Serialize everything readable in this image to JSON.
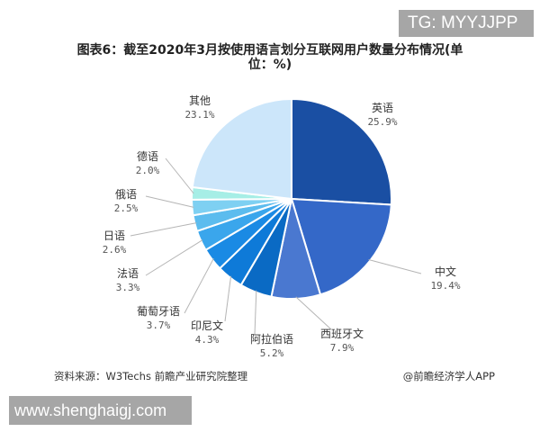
{
  "watermark_badge": "TG: MYYJJPP",
  "title_line1": "图表6：截至2020年3月按使用语言划分互联网用户数量分布情况(单",
  "title_line2": "位：%)",
  "source": "资料来源：W3Techs 前瞻产业研究院整理",
  "credit": "@前瞻经济学人APP",
  "site_badge": "www.shenghaigj.com",
  "colors": {
    "english": "#1a4fa3",
    "chinese": "#3468c8",
    "spanish": "#4a78d0",
    "arabic": "#0a6ac4",
    "indonesian": "#0e7ad8",
    "portuguese": "#1a8ae4",
    "french": "#3aa6ec",
    "japanese": "#5cbcee",
    "russian": "#7ed0f2",
    "german": "#a6eee6",
    "other": "#cce6fa"
  },
  "chart_data": {
    "type": "pie",
    "title": "图表6：截至2020年3月按使用语言划分互联网用户数量分布情况(单位：%)",
    "start_angle": "12 o'clock",
    "direction": "clockwise",
    "categories": [
      "英语",
      "中文",
      "西班牙文",
      "阿拉伯语",
      "印尼文",
      "葡萄牙语",
      "法语",
      "日语",
      "俄语",
      "德语",
      "其他"
    ],
    "values": [
      25.9,
      19.4,
      7.9,
      5.2,
      4.3,
      3.7,
      3.3,
      2.6,
      2.5,
      2.0,
      23.1
    ],
    "value_labels": [
      "25.9%",
      "19.4%",
      "7.9%",
      "5.2%",
      "4.3%",
      "3.7%",
      "3.3%",
      "2.6%",
      "2.5%",
      "2.0%",
      "23.1%"
    ],
    "unit": "%",
    "legend": "none (leader-line labels)"
  },
  "labels": [
    {
      "name": "英语",
      "pct": "25.9%"
    },
    {
      "name": "中文",
      "pct": "19.4%"
    },
    {
      "name": "西班牙文",
      "pct": "7.9%"
    },
    {
      "name": "阿拉伯语",
      "pct": "5.2%"
    },
    {
      "name": "印尼文",
      "pct": "4.3%"
    },
    {
      "name": "葡萄牙语",
      "pct": "3.7%"
    },
    {
      "name": "法语",
      "pct": "3.3%"
    },
    {
      "name": "日语",
      "pct": "2.6%"
    },
    {
      "name": "俄语",
      "pct": "2.5%"
    },
    {
      "name": "德语",
      "pct": "2.0%"
    },
    {
      "name": "其他",
      "pct": "23.1%"
    }
  ]
}
